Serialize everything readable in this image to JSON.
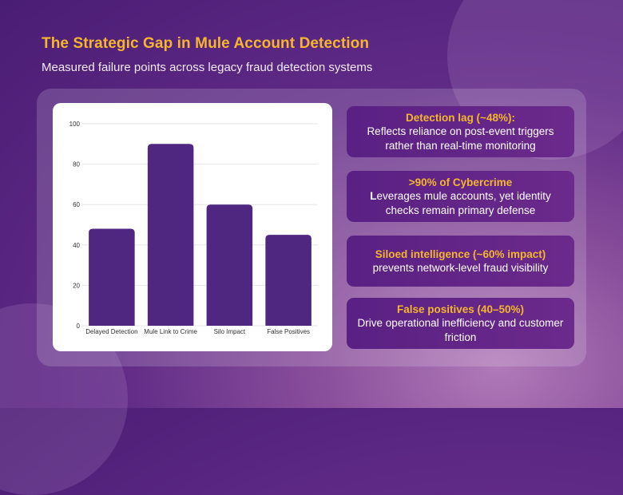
{
  "header": {
    "title": "The Strategic Gap in Mule Account Detection",
    "subtitle": "Measured failure points across legacy fraud detection systems"
  },
  "colors": {
    "title": "#f5b52e",
    "bar": "#4f2780",
    "callout_bg": "#5a2083",
    "grid": "#e6e6e6"
  },
  "chart_data": {
    "type": "bar",
    "categories": [
      "Delayed Detection",
      "Mule Link to Crime",
      "Silo Impact",
      "False Positives"
    ],
    "values": [
      48,
      90,
      60,
      45
    ],
    "ylim": [
      0,
      100
    ],
    "yticks": [
      0,
      20,
      40,
      60,
      80,
      100
    ],
    "grid": true,
    "title": "",
    "xlabel": "",
    "ylabel": ""
  },
  "callouts": [
    {
      "head": "Detection lag (~48%):",
      "body_bold": "",
      "body": "Reflects reliance on post-event triggers rather than real-time monitoring"
    },
    {
      "head": ">90% of Cybercrime",
      "body_bold": "L",
      "body": "everages mule accounts, yet identity checks remain primary defense"
    },
    {
      "head": "Siloed intelligence (~60% impact)",
      "body_bold": "",
      "body": "prevents network-level fraud visibility"
    },
    {
      "head": "False positives (40–50%)",
      "body_bold": "",
      "body": "Drive operational inefficiency and customer friction"
    }
  ]
}
